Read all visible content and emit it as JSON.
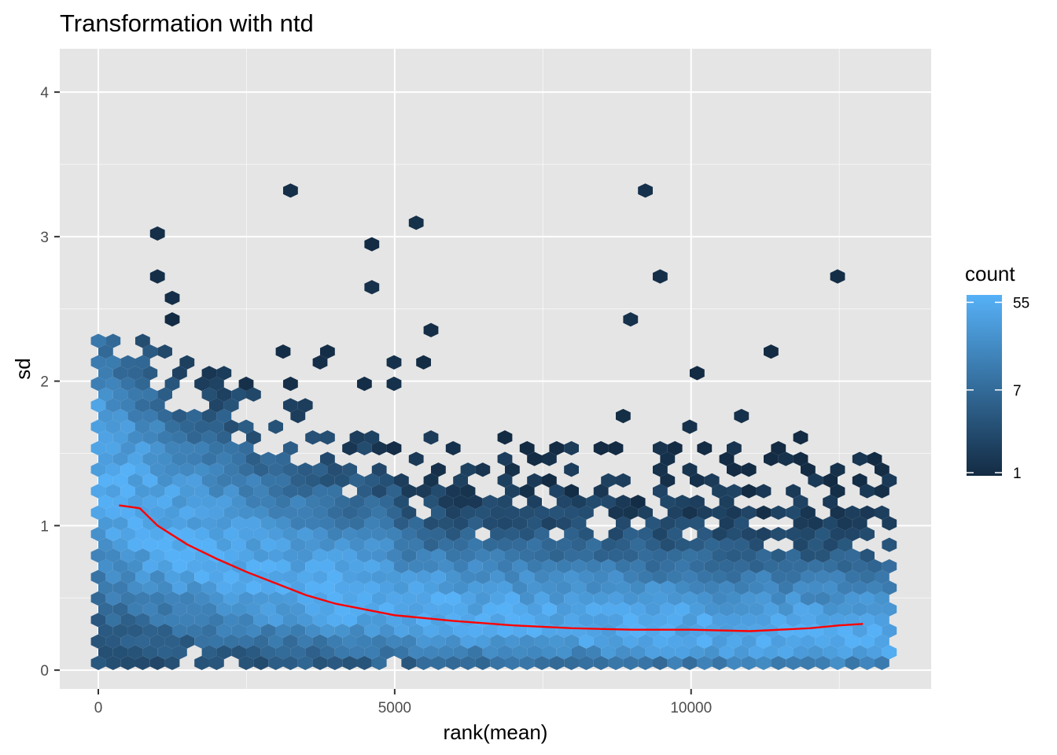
{
  "chart_data": {
    "type": "hexbin",
    "title": "Transformation with ntd",
    "xlabel": "rank(mean)",
    "ylabel": "sd",
    "xlim": [
      -650,
      14050
    ],
    "ylim": [
      -0.13,
      4.3
    ],
    "x_ticks": [
      0,
      5000,
      10000
    ],
    "x_tick_labels": [
      "0",
      "5000",
      "10000"
    ],
    "y_ticks": [
      0,
      1,
      2,
      3,
      4
    ],
    "y_tick_labels": [
      "0",
      "1",
      "2",
      "3",
      "4"
    ],
    "grid": true,
    "background": "#e5e5e5",
    "grid_color": "#ffffff",
    "legend": {
      "title": "count",
      "position": "right",
      "scale": "log",
      "breaks": [
        1,
        7,
        55
      ],
      "break_labels": [
        "1",
        "7",
        "55"
      ],
      "low_color": "#132b43",
      "high_color": "#56b1f7"
    },
    "trend_line": {
      "color": "#ff0000",
      "x": [
        350,
        700,
        1000,
        1500,
        2000,
        2500,
        3000,
        3500,
        4000,
        4500,
        5000,
        6000,
        7000,
        8000,
        9000,
        10000,
        11000,
        12000,
        12500,
        12900
      ],
      "y": [
        1.14,
        1.12,
        1.0,
        0.87,
        0.77,
        0.68,
        0.6,
        0.52,
        0.46,
        0.42,
        0.38,
        0.34,
        0.31,
        0.29,
        0.28,
        0.28,
        0.27,
        0.29,
        0.31,
        0.32
      ]
    }
  }
}
